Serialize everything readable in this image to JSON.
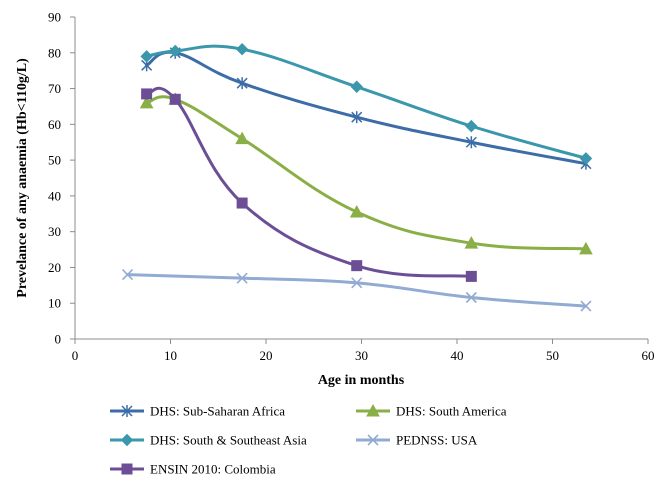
{
  "chart_data": {
    "type": "line",
    "title": "",
    "xlabel": "Age in months",
    "ylabel": "Prevelance of any anaemia (Hb<110g/L)",
    "xlim": [
      0,
      60
    ],
    "ylim": [
      0,
      90
    ],
    "xticks": [
      0,
      10,
      20,
      30,
      40,
      50,
      60
    ],
    "yticks": [
      0,
      10,
      20,
      30,
      40,
      50,
      60,
      70,
      80,
      90
    ],
    "grid": false,
    "legend_position": "bottom",
    "series": [
      {
        "name": "DHS: Sub-Saharan Africa",
        "color": "#3C6DA8",
        "marker": "asterisk",
        "x": [
          7.5,
          10.5,
          17.5,
          29.5,
          41.5,
          53.5
        ],
        "y": [
          76.5,
          80,
          71.5,
          62,
          55,
          49
        ]
      },
      {
        "name": "DHS: South America",
        "color": "#8AAF46",
        "marker": "triangle",
        "x": [
          7.5,
          10.5,
          17.5,
          29.5,
          41.5,
          53.5
        ],
        "y": [
          66,
          67,
          56,
          35.5,
          26.8,
          25.2
        ]
      },
      {
        "name": "DHS: South & Southeast Asia",
        "color": "#3B97AC",
        "marker": "diamond",
        "x": [
          7.5,
          10.5,
          17.5,
          29.5,
          41.5,
          53.5
        ],
        "y": [
          79,
          80.5,
          81,
          70.5,
          59.5,
          50.5
        ]
      },
      {
        "name": "PEDNSS: USA",
        "color": "#92ABD3",
        "marker": "x",
        "x": [
          5.5,
          17.5,
          29.5,
          41.5,
          53.5
        ],
        "y": [
          18,
          17,
          15.7,
          11.6,
          9.2
        ]
      },
      {
        "name": "ENSIN 2010: Colombia",
        "color": "#6C4E96",
        "marker": "square",
        "x": [
          7.5,
          10.5,
          17.5,
          29.5,
          41.5
        ],
        "y": [
          68.5,
          67,
          38,
          20.5,
          17.5
        ]
      }
    ]
  }
}
